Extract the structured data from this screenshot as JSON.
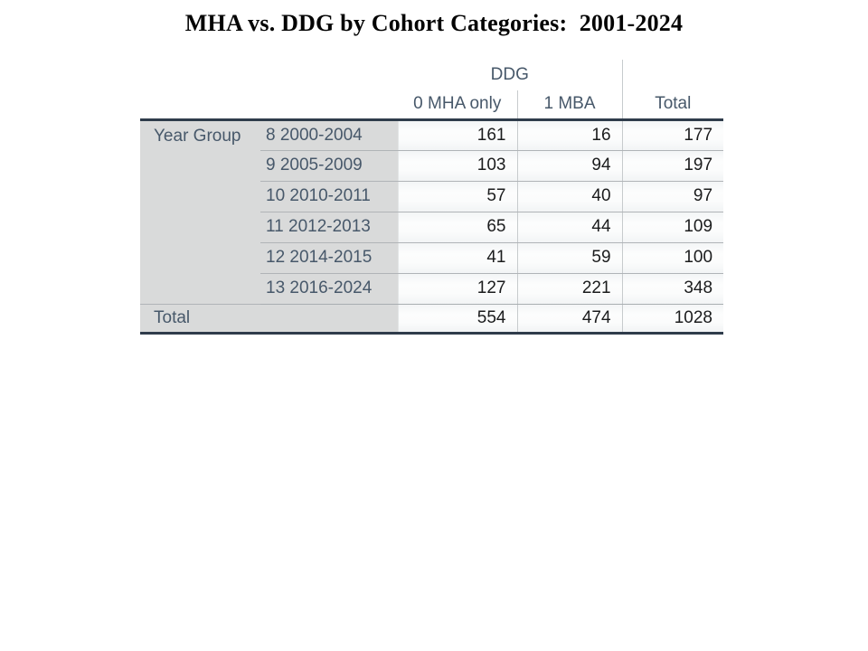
{
  "title": "MHA vs. DDG by Cohort Categories:  2001-2024",
  "table": {
    "col_group_header": "DDG",
    "col_headers": {
      "mha_only": "0 MHA only",
      "mba": "1 MBA",
      "total": "Total"
    },
    "row_group_label": "Year Group",
    "rows": [
      {
        "label": "8 2000-2004",
        "mha_only": "161",
        "mba": "16",
        "total": "177"
      },
      {
        "label": "9 2005-2009",
        "mha_only": "103",
        "mba": "94",
        "total": "197"
      },
      {
        "label": "10 2010-2011",
        "mha_only": "57",
        "mba": "40",
        "total": "97"
      },
      {
        "label": "11 2012-2013",
        "mha_only": "65",
        "mba": "44",
        "total": "109"
      },
      {
        "label": "12 2014-2015",
        "mha_only": "41",
        "mba": "59",
        "total": "100"
      },
      {
        "label": "13 2016-2024",
        "mha_only": "127",
        "mba": "221",
        "total": "348"
      }
    ],
    "total_row": {
      "label": "Total",
      "mha_only": "554",
      "mba": "474",
      "total": "1028"
    }
  },
  "chart_data": {
    "type": "table",
    "title": "MHA vs. DDG by Cohort Categories: 2001-2024",
    "row_dimension": "Year Group",
    "col_dimension": "DDG",
    "columns": [
      "0 MHA only",
      "1 MBA",
      "Total"
    ],
    "rows": [
      {
        "label": "8 2000-2004",
        "values": [
          161,
          16,
          177
        ]
      },
      {
        "label": "9 2005-2009",
        "values": [
          103,
          94,
          197
        ]
      },
      {
        "label": "10 2010-2011",
        "values": [
          57,
          40,
          97
        ]
      },
      {
        "label": "11 2012-2013",
        "values": [
          65,
          44,
          109
        ]
      },
      {
        "label": "12 2014-2015",
        "values": [
          41,
          59,
          100
        ]
      },
      {
        "label": "13 2016-2024",
        "values": [
          127,
          221,
          348
        ]
      }
    ],
    "total_row": {
      "label": "Total",
      "values": [
        554,
        474,
        1028
      ]
    }
  },
  "colors": {
    "header_text": "#47586a",
    "value_text": "#1b1c1d",
    "stub_background": "#d9dada",
    "thick_rule": "#2f3c4b",
    "row_separator": "#b0b4b7",
    "column_rule": "#c7cbcd"
  }
}
